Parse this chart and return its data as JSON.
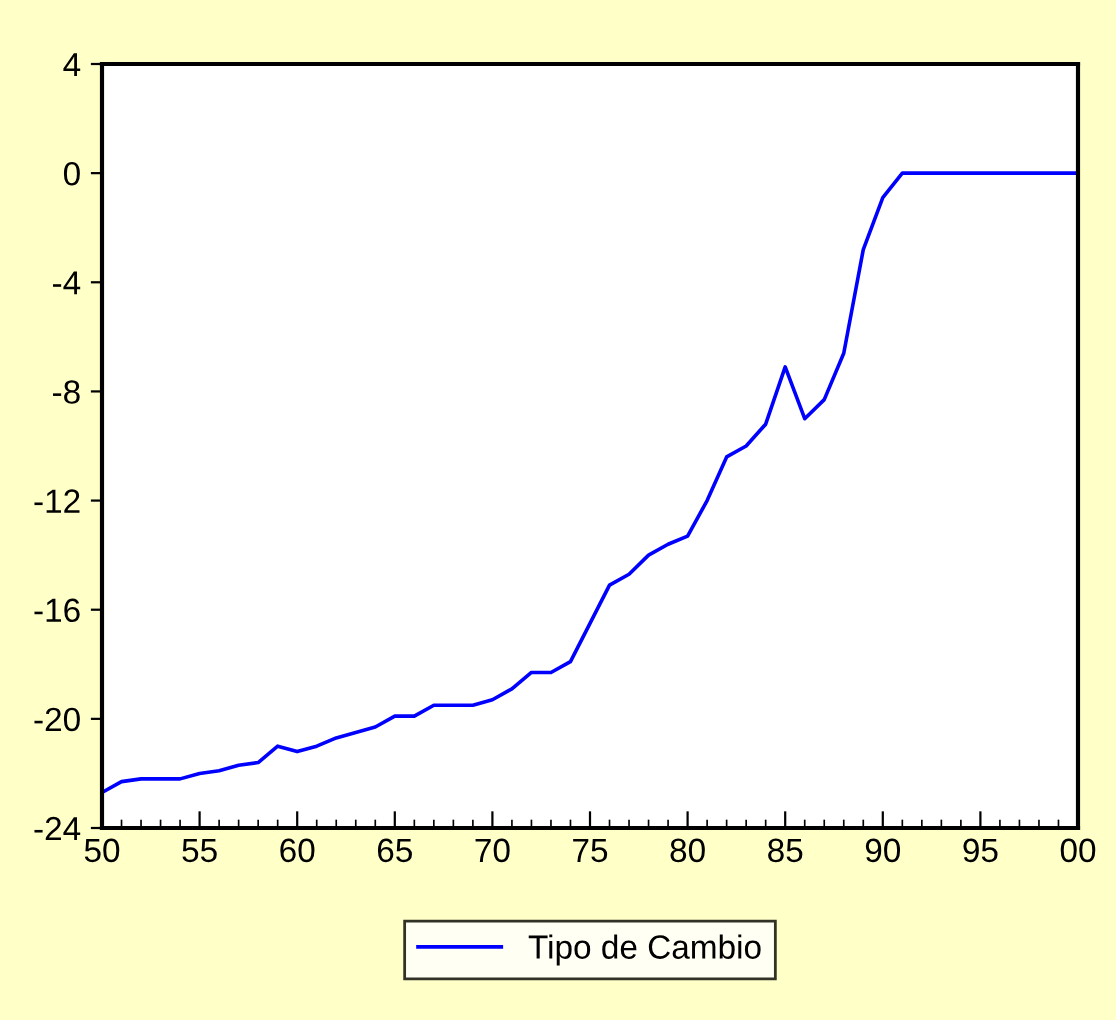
{
  "chart_data": {
    "type": "line",
    "x": [
      1950,
      1951,
      1952,
      1953,
      1954,
      1955,
      1956,
      1957,
      1958,
      1959,
      1960,
      1961,
      1962,
      1963,
      1964,
      1965,
      1966,
      1967,
      1968,
      1969,
      1970,
      1971,
      1972,
      1973,
      1974,
      1975,
      1976,
      1977,
      1978,
      1979,
      1980,
      1981,
      1982,
      1983,
      1984,
      1985,
      1986,
      1987,
      1988,
      1989,
      1990,
      1991,
      1992,
      1993,
      1994,
      1995,
      1996,
      1997,
      1998,
      1999,
      2000
    ],
    "series": [
      {
        "name": "Tipo de Cambio",
        "color": "#0000ff",
        "values": [
          -22.7,
          -22.3,
          -22.2,
          -22.2,
          -22.2,
          -22.0,
          -21.9,
          -21.7,
          -21.6,
          -21.0,
          -21.2,
          -21.0,
          -20.7,
          -20.5,
          -20.3,
          -19.9,
          -19.9,
          -19.5,
          -19.5,
          -19.5,
          -19.3,
          -18.9,
          -18.3,
          -18.3,
          -17.9,
          -16.5,
          -15.1,
          -14.7,
          -14.0,
          -13.6,
          -13.3,
          -12.0,
          -10.4,
          -10.0,
          -9.2,
          -7.1,
          -9.0,
          -8.3,
          -6.6,
          -2.8,
          -0.9,
          0,
          0,
          0,
          0,
          0,
          0,
          0,
          0,
          0,
          0
        ]
      }
    ],
    "xlim": [
      1950,
      2000
    ],
    "xticks": [
      {
        "value": 1950,
        "label": "50"
      },
      {
        "value": 1955,
        "label": "55"
      },
      {
        "value": 1960,
        "label": "60"
      },
      {
        "value": 1965,
        "label": "65"
      },
      {
        "value": 1970,
        "label": "70"
      },
      {
        "value": 1975,
        "label": "75"
      },
      {
        "value": 1980,
        "label": "80"
      },
      {
        "value": 1985,
        "label": "85"
      },
      {
        "value": 1990,
        "label": "90"
      },
      {
        "value": 1995,
        "label": "95"
      },
      {
        "value": 2000,
        "label": "00"
      }
    ],
    "ylim": [
      -24,
      4
    ],
    "yticks": [
      -24,
      -20,
      -16,
      -12,
      -8,
      -4,
      0,
      4
    ],
    "grid": false,
    "legend": "bottom",
    "line_style": "solid",
    "marker": "none"
  }
}
